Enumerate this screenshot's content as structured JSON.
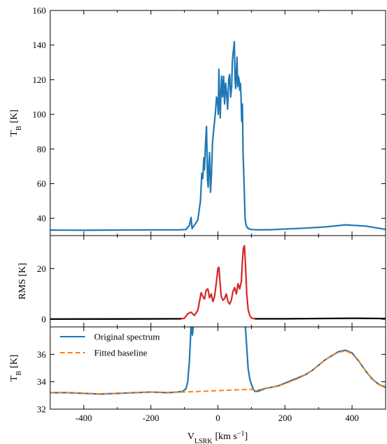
{
  "chart_data": [
    {
      "type": "line",
      "panel": "top",
      "ylabel": "T",
      "ylabel_sub": "B",
      "ylabel_unit": "[K]",
      "xlim": [
        -500,
        500
      ],
      "ylim": [
        30,
        160
      ],
      "yticks": [
        40,
        60,
        80,
        100,
        120,
        140,
        160
      ],
      "ytick_labels": [
        "40",
        "60",
        "80",
        "100",
        "120",
        "140",
        "160"
      ],
      "grid": false,
      "series": [
        {
          "color": "#1f77b4",
          "x": [
            -500,
            -400,
            -300,
            -200,
            -120,
            -95,
            -85,
            -80,
            -77,
            -74,
            -70,
            -60,
            -52,
            -48,
            -45,
            -42,
            -40,
            -37,
            -34,
            -31,
            -29,
            -27,
            -25,
            -22,
            -19,
            -16,
            -13,
            -10,
            -7,
            -4,
            -1,
            1,
            3,
            5,
            7,
            9,
            11,
            14,
            17,
            20,
            23,
            26,
            29,
            32,
            35,
            38,
            41,
            43,
            45,
            47,
            49,
            51,
            53,
            55,
            57,
            59,
            61,
            63,
            65,
            67,
            69,
            71,
            73,
            75,
            78,
            81,
            84,
            88,
            92,
            100,
            120,
            160,
            200,
            260,
            320,
            380,
            440,
            500
          ],
          "y": [
            33.2,
            33.1,
            33.2,
            33.3,
            33.3,
            33.5,
            36,
            40.5,
            34,
            35,
            36,
            39,
            50,
            66,
            63,
            75,
            68,
            83,
            93,
            62,
            58,
            70,
            78,
            55,
            66,
            84,
            90,
            96,
            102,
            110,
            108,
            100,
            126,
            108,
            98,
            113,
            122,
            110,
            122,
            106,
            118,
            112,
            103,
            120,
            123,
            110,
            116,
            130,
            135,
            138,
            142,
            120,
            115,
            125,
            133,
            116,
            122,
            120,
            114,
            118,
            110,
            96,
            106,
            78,
            60,
            40,
            36,
            34.5,
            34,
            33.5,
            33.3,
            33.4,
            33.8,
            34.3,
            35,
            36.2,
            35.5,
            33.6
          ]
        }
      ]
    },
    {
      "type": "line",
      "panel": "middle",
      "ylabel": "RMS [K]",
      "xlim": [
        -500,
        500
      ],
      "ylim": [
        -3,
        33
      ],
      "yticks": [
        0,
        20
      ],
      "ytick_labels": [
        "0",
        "20"
      ],
      "grid": false,
      "series": [
        {
          "color": "#000000",
          "x": [
            -500,
            -300,
            -110,
            -500
          ],
          "y": [
            0.1,
            0.1,
            0.2,
            0.1
          ]
        },
        {
          "color": "#d62728",
          "x": [
            -110,
            -100,
            -90,
            -80,
            -70,
            -60,
            -55,
            -50,
            -45,
            -40,
            -35,
            -30,
            -25,
            -20,
            -15,
            -10,
            -5,
            0,
            3,
            6,
            10,
            15,
            20,
            25,
            30,
            35,
            40,
            45,
            50,
            55,
            60,
            65,
            70,
            73,
            76,
            79,
            82,
            86,
            90,
            95,
            100,
            110
          ],
          "y": [
            0.2,
            0.4,
            2.2,
            2.8,
            1.5,
            3.5,
            7,
            10.5,
            9,
            8,
            11.5,
            12,
            8.5,
            10,
            7,
            9,
            14,
            20,
            20.5,
            15,
            9,
            7.5,
            8.2,
            10,
            7,
            6,
            7.5,
            11,
            12.5,
            10,
            14,
            12,
            15,
            23,
            28,
            29,
            22,
            10,
            4,
            1.5,
            0.5,
            0.2
          ]
        },
        {
          "color": "#000000",
          "x": [
            110,
            200,
            300,
            400,
            500
          ],
          "y": [
            0.2,
            0.2,
            0.3,
            0.4,
            0.3
          ]
        }
      ]
    },
    {
      "type": "line",
      "panel": "bottom",
      "ylabel": "T",
      "ylabel_sub": "B",
      "ylabel_unit": "[K]",
      "xlabel": "V",
      "xlabel_sub": "LSRK",
      "xlabel_unit": "[km s",
      "xlabel_sup": "−1",
      "xlabel_close": "]",
      "xlim": [
        -500,
        500
      ],
      "ylim": [
        32,
        38
      ],
      "yticks": [
        32,
        34,
        36
      ],
      "ytick_labels": [
        "32",
        "34",
        "36"
      ],
      "xticks": [
        -400,
        -200,
        0,
        200,
        400
      ],
      "xtick_labels": [
        "-400",
        "-200",
        "0",
        "200",
        "400"
      ],
      "grid": false,
      "legend_position": "top-left",
      "series": [
        {
          "name": "Original spectrum",
          "color": "#1f77b4",
          "style": "solid",
          "x": [
            -500,
            -450,
            -400,
            -350,
            -300,
            -250,
            -200,
            -150,
            -120,
            -105,
            -95,
            -90,
            -85,
            -82,
            -80,
            -78,
            -76,
            -74,
            -72,
            -70,
            -68,
            80,
            82,
            86,
            90,
            95,
            100,
            105,
            110,
            120,
            140,
            160,
            180,
            200,
            220,
            240,
            260,
            280,
            300,
            320,
            340,
            360,
            380,
            400,
            420,
            440,
            460,
            480,
            500
          ],
          "y": [
            33.2,
            33.2,
            33.15,
            33.1,
            33.15,
            33.2,
            33.25,
            33.2,
            33.25,
            33.3,
            33.5,
            34,
            35.5,
            37,
            38.2,
            37.8,
            37.4,
            37.9,
            38.3,
            38.5,
            38.5,
            38.5,
            38,
            36.5,
            35,
            34.2,
            33.8,
            33.5,
            33.3,
            33.3,
            33.5,
            33.6,
            33.7,
            33.9,
            34.1,
            34.3,
            34.5,
            34.8,
            35.2,
            35.6,
            35.9,
            36.2,
            36.3,
            36.1,
            35.5,
            34.8,
            34.2,
            33.8,
            33.6
          ]
        },
        {
          "name": "Fitted baseline",
          "color": "#ff7f0e",
          "style": "dashed",
          "x": [
            -500,
            -450,
            -400,
            -350,
            -300,
            -250,
            -200,
            -150,
            -100,
            0,
            100,
            120,
            140,
            160,
            180,
            200,
            220,
            240,
            260,
            280,
            300,
            320,
            340,
            360,
            380,
            400,
            420,
            440,
            460,
            480,
            500
          ],
          "y": [
            33.2,
            33.2,
            33.15,
            33.12,
            33.15,
            33.2,
            33.25,
            33.22,
            33.25,
            33.35,
            33.45,
            33.4,
            33.5,
            33.6,
            33.7,
            33.85,
            34.05,
            34.25,
            34.5,
            34.8,
            35.2,
            35.6,
            35.9,
            36.15,
            36.25,
            36.05,
            35.5,
            34.8,
            34.2,
            33.8,
            33.55
          ]
        }
      ]
    }
  ]
}
